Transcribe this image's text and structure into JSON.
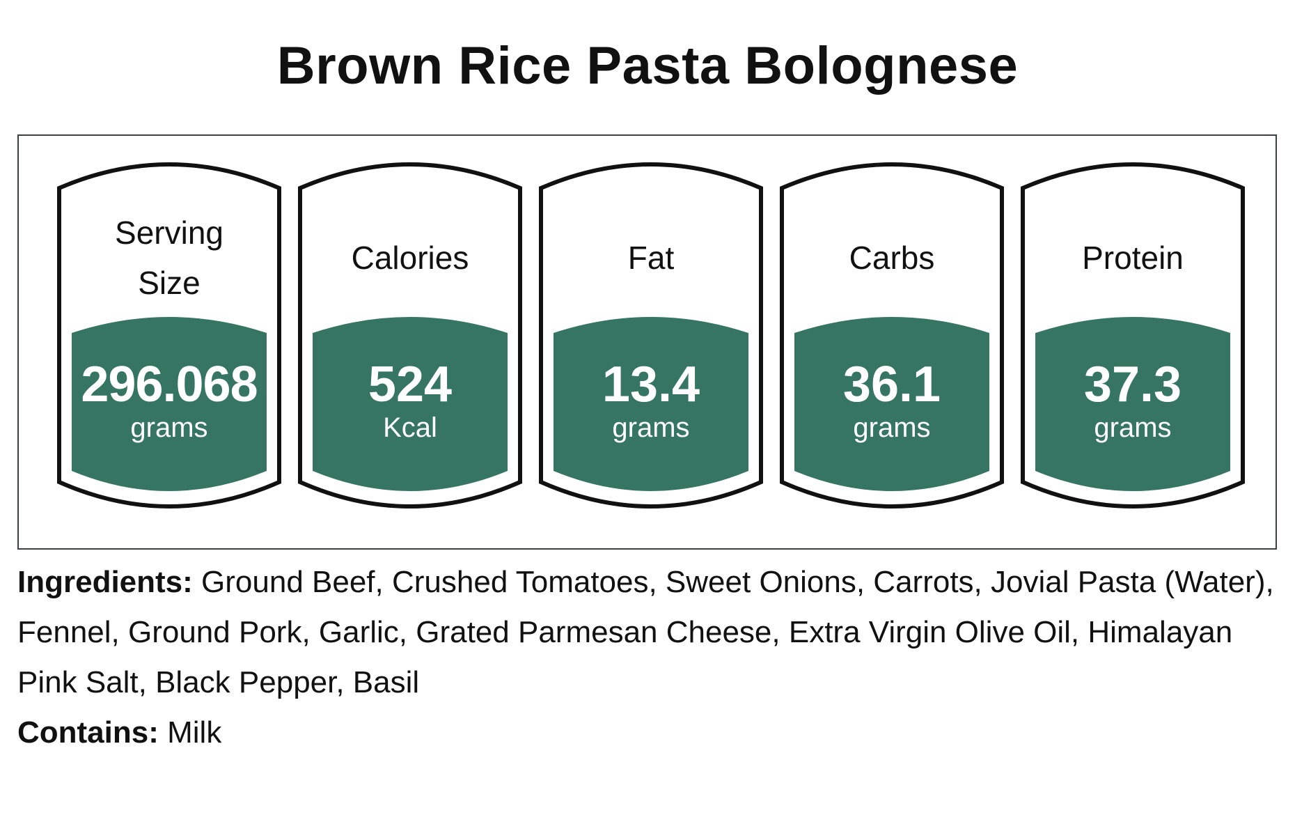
{
  "title": "Brown Rice Pasta Bolognese",
  "colors": {
    "fill": "#357562",
    "outline": "#111111",
    "panel_border": "#3a4045"
  },
  "nutrients": [
    {
      "label": "Serving Size",
      "value": "296.068",
      "unit": "grams"
    },
    {
      "label": "Calories",
      "value": "524",
      "unit": "Kcal"
    },
    {
      "label": "Fat",
      "value": "13.4",
      "unit": "grams"
    },
    {
      "label": "Carbs",
      "value": "36.1",
      "unit": "grams"
    },
    {
      "label": "Protein",
      "value": "37.3",
      "unit": "grams"
    }
  ],
  "ingredients": {
    "label": "Ingredients:",
    "text": "Ground Beef, Crushed Tomatoes, Sweet Onions, Carrots, Jovial Pasta (Water), Fennel, Ground Pork, Garlic, Grated Parmesan Cheese, Extra Virgin Olive Oil, Himalayan Pink Salt, Black Pepper, Basil"
  },
  "contains": {
    "label": "Contains:",
    "text": "Milk"
  }
}
